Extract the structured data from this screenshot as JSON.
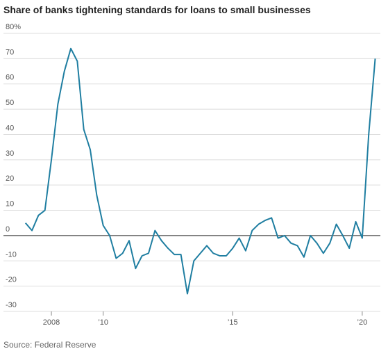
{
  "chart_data": {
    "type": "line",
    "title": "Share of banks tightening standards for loans to small businesses",
    "source": "Source: Federal Reserve",
    "x": [
      2007,
      2007.25,
      2007.5,
      2007.75,
      2008,
      2008.25,
      2008.5,
      2008.75,
      2009,
      2009.25,
      2009.5,
      2009.75,
      2010,
      2010.25,
      2010.5,
      2010.75,
      2011,
      2011.25,
      2011.5,
      2011.75,
      2012,
      2012.25,
      2012.5,
      2012.75,
      2013,
      2013.25,
      2013.5,
      2013.75,
      2014,
      2014.25,
      2014.5,
      2014.75,
      2015,
      2015.25,
      2015.5,
      2015.75,
      2016,
      2016.25,
      2016.5,
      2016.75,
      2017,
      2017.25,
      2017.5,
      2017.75,
      2018,
      2018.25,
      2018.5,
      2018.75,
      2019,
      2019.25,
      2019.5,
      2019.75,
      2020,
      2020.25,
      2020.5
    ],
    "series": [
      {
        "color": "#1f7ea1",
        "values": [
          5,
          2,
          8,
          10,
          30,
          52,
          65,
          74,
          69,
          42,
          34,
          16,
          4,
          0,
          -9,
          -7,
          -2,
          -13,
          -8,
          -7,
          2,
          -2,
          -5,
          -7.5,
          -7.5,
          -23,
          -10,
          -7,
          -4,
          -7,
          -8,
          -8,
          -5,
          -1,
          -6,
          2,
          4.5,
          6,
          7,
          -1,
          0,
          -3,
          -4,
          -8.5,
          0,
          -3,
          -7,
          -3,
          4.5,
          0,
          -5,
          5.5,
          -1,
          40,
          70
        ]
      }
    ],
    "xlim": [
      2006.15,
      2020.7
    ],
    "xticks": [
      2008,
      {
        "value": 2010,
        "label": "’10"
      },
      {
        "value": 2015,
        "label": "’15"
      },
      {
        "value": 2020,
        "label": "’20"
      }
    ],
    "ylim": [
      -30,
      80
    ],
    "yticks": [
      -30,
      -20,
      -10,
      0,
      10,
      20,
      30,
      40,
      50,
      60,
      70,
      {
        "value": 80,
        "label": "80%"
      }
    ],
    "grid": true
  }
}
